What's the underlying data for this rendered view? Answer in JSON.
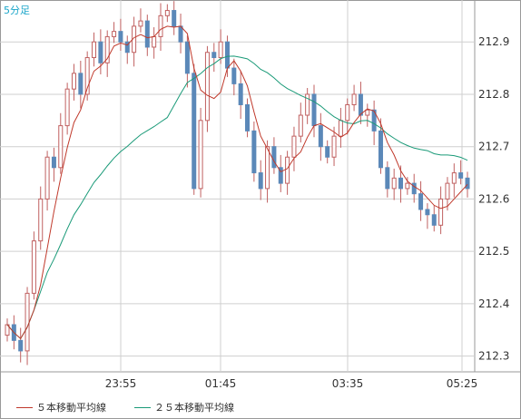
{
  "timeframe_label": "5分足",
  "legend": [
    {
      "label": "５本移動平均線",
      "color": "#c0392b"
    },
    {
      "label": "２５本移動平均線",
      "color": "#1a9a78"
    }
  ],
  "colors": {
    "up": "#e0a090",
    "down": "#5b88b8",
    "wick": "#c06060",
    "grid": "#cfcfcf",
    "axis": "#999999"
  },
  "chart_data": {
    "type": "candlestick",
    "x_ticks": [
      "23:55",
      "01:45",
      "03:35",
      "05:25"
    ],
    "y_ticks": [
      212.3,
      212.4,
      212.5,
      212.6,
      212.7,
      212.8,
      212.9
    ],
    "ylim": [
      212.27,
      212.98
    ],
    "candles_close": [
      212.36,
      212.33,
      212.31,
      212.42,
      212.52,
      212.6,
      212.68,
      212.66,
      212.74,
      212.81,
      212.84,
      212.8,
      212.87,
      212.9,
      212.86,
      212.91,
      212.92,
      212.9,
      212.88,
      212.93,
      212.94,
      212.89,
      212.91,
      212.95,
      212.96,
      212.93,
      212.9,
      212.84,
      212.62,
      212.75,
      212.88,
      212.87,
      212.9,
      212.85,
      212.82,
      212.78,
      212.73,
      212.65,
      212.62,
      212.7,
      212.66,
      212.63,
      212.68,
      212.72,
      212.76,
      212.8,
      212.74,
      212.7,
      212.68,
      212.72,
      212.75,
      212.78,
      212.8,
      212.76,
      212.77,
      212.73,
      212.66,
      212.62,
      212.64,
      212.62,
      212.63,
      212.61,
      212.58,
      212.57,
      212.55,
      212.6,
      212.63,
      212.65,
      212.64,
      212.62
    ]
  }
}
